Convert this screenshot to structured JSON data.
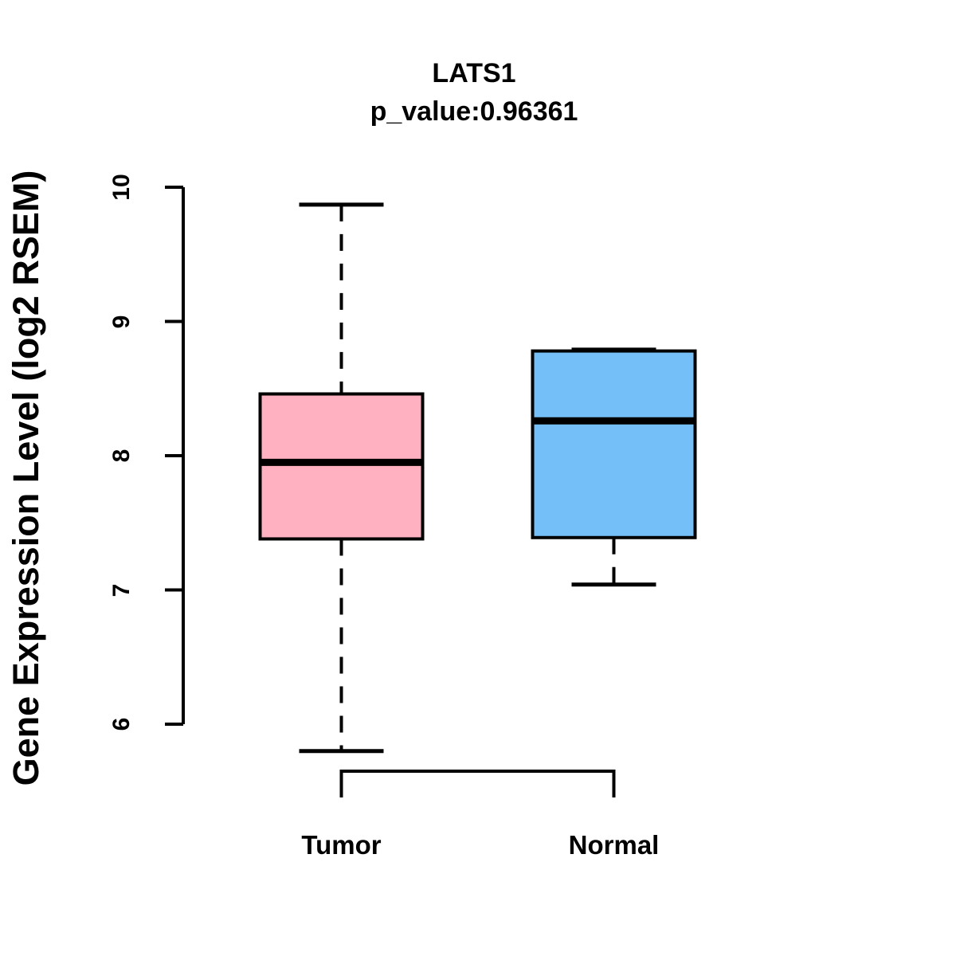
{
  "chart_data": {
    "type": "boxplot",
    "title": "LATS1",
    "subtitle": "p_value:0.96361",
    "ylabel": "Gene Expression Level (log2 RSEM)",
    "xlabel": "",
    "ylim": [
      6,
      10
    ],
    "yticks": [
      "10",
      "9",
      "8",
      "7",
      "6"
    ],
    "ytick_values": [
      10,
      9,
      8,
      7,
      6
    ],
    "categories": [
      "Tumor",
      "Normal"
    ],
    "series": [
      {
        "name": "Tumor",
        "fill_color": "#FFB1C1",
        "stats": {
          "min": 5.8,
          "q1": 7.38,
          "median": 7.95,
          "q3": 8.46,
          "max": 9.87
        }
      },
      {
        "name": "Normal",
        "fill_color": "#74BFF7",
        "stats": {
          "min": 7.04,
          "q1": 7.39,
          "median": 8.26,
          "q3": 8.78,
          "max": 8.79
        }
      }
    ],
    "box_border_color": "#000000",
    "whisker_style": "dashed",
    "background_color": "#FFFFFF",
    "grid": false,
    "legend": false
  }
}
